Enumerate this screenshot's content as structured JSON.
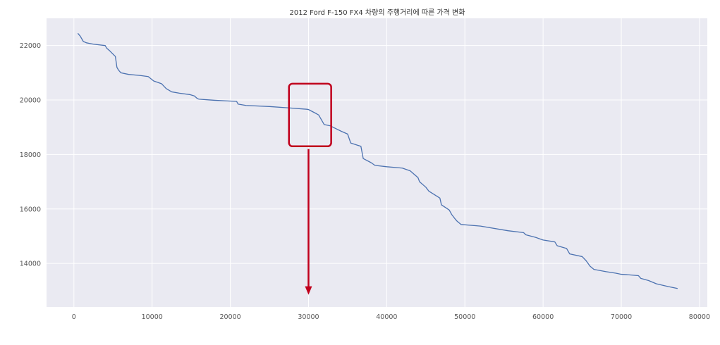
{
  "colors": {
    "plot_background": "#eaeaf2",
    "grid": "#ffffff",
    "line": "#4c72b0",
    "annotation": "#c0001c"
  },
  "chart_data": {
    "type": "line",
    "title": "2012 Ford F-150 FX4 차량의 주행거리에 따른 가격 변화",
    "xlabel": "",
    "ylabel": "",
    "xlim": [
      -3500,
      81000
    ],
    "ylim": [
      12400,
      23000
    ],
    "x_ticks": [
      0,
      10000,
      20000,
      30000,
      40000,
      50000,
      60000,
      70000,
      80000
    ],
    "x_tick_labels": [
      "0",
      "10000",
      "20000",
      "30000",
      "40000",
      "50000",
      "60000",
      "70000",
      "80000"
    ],
    "y_ticks": [
      14000,
      16000,
      18000,
      20000,
      22000
    ],
    "y_tick_labels": [
      "14000",
      "16000",
      "18000",
      "20000",
      "22000"
    ],
    "grid": true,
    "series": [
      {
        "name": "",
        "x": [
          500,
          800,
          1200,
          1600,
          2500,
          4000,
          4200,
          4600,
          5300,
          5500,
          5700,
          6000,
          7000,
          8500,
          9500,
          10200,
          11200,
          11800,
          12500,
          13500,
          14800,
          15400,
          15800,
          16000,
          18000,
          20800,
          21000,
          22000,
          25000,
          27500,
          29800,
          30000,
          30200,
          31000,
          31300,
          32000,
          32800,
          33200,
          34200,
          35000,
          35400,
          36700,
          37000,
          38000,
          38500,
          40000,
          42000,
          43000,
          44000,
          44200,
          45000,
          45400,
          46800,
          47000,
          48000,
          48300,
          48700,
          49000,
          49500,
          52000,
          55500,
          57500,
          57800,
          59000,
          60000,
          61500,
          61800,
          63000,
          63400,
          65000,
          65500,
          66000,
          66500,
          68000,
          69300,
          70000,
          71000,
          72200,
          72500,
          73500,
          74500,
          76000,
          77200
        ],
        "values": [
          22450,
          22350,
          22150,
          22100,
          22050,
          22000,
          21900,
          21800,
          21600,
          21200,
          21100,
          21000,
          20940,
          20900,
          20860,
          20700,
          20600,
          20420,
          20300,
          20250,
          20200,
          20150,
          20050,
          20030,
          19990,
          19950,
          19850,
          19800,
          19760,
          19710,
          19660,
          19650,
          19620,
          19500,
          19450,
          19100,
          19050,
          18990,
          18850,
          18750,
          18420,
          18300,
          17850,
          17700,
          17600,
          17550,
          17500,
          17400,
          17150,
          17000,
          16800,
          16650,
          16400,
          16150,
          15960,
          15800,
          15650,
          15550,
          15430,
          15370,
          15200,
          15130,
          15050,
          14960,
          14860,
          14790,
          14650,
          14550,
          14350,
          14250,
          14100,
          13900,
          13780,
          13700,
          13640,
          13600,
          13580,
          13550,
          13450,
          13370,
          13250,
          13150,
          13080
        ]
      }
    ],
    "annotations": [
      {
        "type": "box",
        "x_range": [
          27500,
          32900
        ],
        "y_range": [
          18300,
          20600
        ]
      },
      {
        "type": "arrow",
        "x": 30000,
        "y_from": 18200,
        "y_to": 12850
      }
    ]
  }
}
